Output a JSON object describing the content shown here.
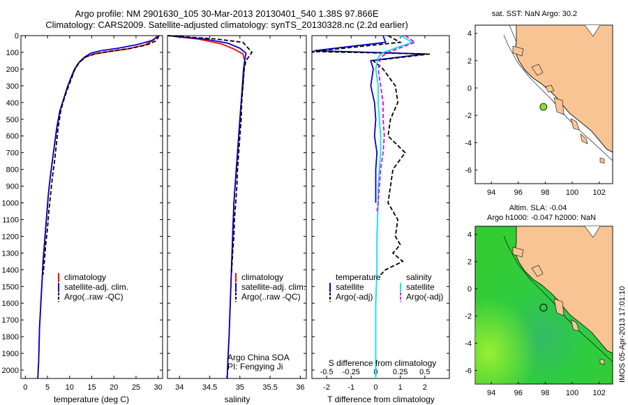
{
  "header": {
    "title_line1": "Argo profile: NM 2901630_105 30-Mar-2013 20130401_540 1.38S 97.866E",
    "title_line2": "Climatology: CARS2009. Satellite-adjusted climatology: synTS_20130328.nc (2.2d earlier)"
  },
  "colors": {
    "climatology": "#ff0000",
    "satellite": "#0000cc",
    "argo": "#000000",
    "sat_salinity": "#00e5ee",
    "argo_salinity_adj": "#e000e0",
    "land": "#f8c493",
    "ocean_map2": "#33cc33"
  },
  "depth_axis": {
    "ticks": [
      0,
      100,
      200,
      300,
      400,
      500,
      600,
      700,
      800,
      900,
      1000,
      1100,
      1200,
      1300,
      1400,
      1500,
      1600,
      1700,
      1800,
      1900,
      2000
    ],
    "range": [
      0,
      2050
    ]
  },
  "chart_data": [
    {
      "id": "temperature",
      "type": "line",
      "xlabel": "temperature (deg C)",
      "xlim": [
        -1,
        31
      ],
      "xticks": [
        0,
        5,
        10,
        15,
        20,
        25,
        30
      ],
      "legend": [
        "climatology",
        "satellite-adj. clim.",
        "Argo(..raw -QC)"
      ],
      "series": [
        {
          "name": "climatology",
          "color": "#ff0000",
          "dash": false,
          "x": [
            29.8,
            29.5,
            28.8,
            27,
            23,
            19,
            15.5,
            13.5,
            12.2,
            11.2,
            10.4,
            9.6,
            9,
            8.4,
            7.8,
            7.1,
            6.6,
            6.1,
            5.6,
            5.2,
            4.9,
            4.6,
            4.3,
            4.0,
            3.8,
            3.6,
            3.4,
            3.2,
            3.1,
            3.0,
            2.9,
            2.85,
            2.8,
            2.8
          ],
          "y": [
            0,
            10,
            30,
            55,
            80,
            95,
            110,
            130,
            160,
            200,
            250,
            300,
            350,
            400,
            450,
            550,
            650,
            750,
            850,
            950,
            1050,
            1150,
            1250,
            1350,
            1450,
            1550,
            1650,
            1750,
            1850,
            1950,
            2000,
            2030,
            2050,
            2050
          ]
        },
        {
          "name": "satellite-adj. clim.",
          "color": "#0000cc",
          "dash": false,
          "x": [
            30.2,
            29.8,
            28.5,
            25,
            21,
            17,
            14.8,
            13.3,
            12.1,
            11.1,
            10.3,
            9.6,
            9,
            8.4,
            7.8,
            7.1,
            6.6,
            6.1,
            5.6,
            5.2,
            4.9,
            4.6,
            4.3,
            4.0,
            3.8,
            3.6,
            3.4,
            3.2,
            3.1,
            3.0,
            2.9,
            2.85,
            2.8
          ],
          "y": [
            0,
            10,
            30,
            55,
            75,
            90,
            105,
            130,
            160,
            200,
            250,
            300,
            350,
            400,
            450,
            550,
            650,
            750,
            850,
            950,
            1050,
            1150,
            1250,
            1350,
            1450,
            1550,
            1650,
            1750,
            1850,
            1950,
            2000,
            2030,
            2050
          ]
        },
        {
          "name": "Argo(..raw -QC)",
          "color": "#000000",
          "dash": true,
          "x": [
            30.2,
            30.0,
            29.6,
            27.5,
            24,
            20,
            16.5,
            13.8,
            12.2,
            11.2,
            10.5,
            9.8,
            9.1,
            8.5,
            8.0,
            7.4,
            7.0,
            6.6,
            6.1,
            5.7,
            5.3,
            5.0,
            4.6,
            4.3,
            4.0
          ],
          "y": [
            0,
            10,
            30,
            55,
            75,
            90,
            105,
            125,
            160,
            200,
            250,
            300,
            350,
            400,
            450,
            550,
            650,
            750,
            850,
            950,
            1050,
            1150,
            1250,
            1350,
            1430
          ]
        }
      ]
    },
    {
      "id": "salinity",
      "type": "line",
      "xlabel": "salinity",
      "xlim": [
        33.8,
        36.1
      ],
      "xticks": [
        34,
        34.5,
        35,
        35.5,
        36
      ],
      "xticklabels": [
        "34",
        "34.5",
        "35",
        "35.5",
        "36"
      ],
      "legend": [
        "climatology",
        "satellite-adj. clim.",
        "Argo(..raw -QC)"
      ],
      "annotation": [
        "Argo China SOA",
        "PI: Fengying Ji"
      ],
      "series": [
        {
          "name": "climatology",
          "color": "#ff0000",
          "dash": false,
          "x": [
            33.8,
            34.3,
            34.7,
            34.9,
            35.05,
            35.08,
            35.07,
            35.05,
            35.02,
            35.0,
            34.98,
            34.96,
            34.94,
            34.92,
            34.9,
            34.88,
            34.86,
            34.84,
            34.82,
            34.8,
            34.79,
            34.78
          ],
          "y": [
            0,
            20,
            50,
            80,
            110,
            150,
            200,
            300,
            400,
            500,
            600,
            700,
            800,
            900,
            1000,
            1200,
            1400,
            1600,
            1800,
            1950,
            2030,
            2050
          ]
        },
        {
          "name": "satellite-adj. clim.",
          "color": "#0000cc",
          "dash": false,
          "x": [
            33.8,
            34.4,
            34.8,
            35.0,
            35.1,
            35.08,
            35.06,
            35.04,
            35.02,
            35.0,
            34.98,
            34.96,
            34.94,
            34.92,
            34.9,
            34.88,
            34.86,
            34.84,
            34.82,
            34.8,
            34.79
          ],
          "y": [
            0,
            20,
            45,
            75,
            105,
            150,
            200,
            300,
            400,
            500,
            600,
            700,
            800,
            900,
            1000,
            1200,
            1400,
            1600,
            1800,
            1950,
            2050
          ]
        },
        {
          "name": "Argo(..raw -QC)",
          "color": "#000000",
          "dash": true,
          "x": [
            33.8,
            34.6,
            35.05,
            35.2,
            35.1,
            35.07,
            35.05,
            35.03,
            35.02,
            35.0,
            34.98,
            34.96,
            34.95,
            34.93,
            34.91,
            34.9,
            34.88,
            34.86
          ],
          "y": [
            0,
            20,
            40,
            100,
            150,
            200,
            300,
            400,
            500,
            600,
            700,
            800,
            900,
            1000,
            1100,
            1200,
            1300,
            1430
          ]
        }
      ]
    },
    {
      "id": "difference",
      "type": "line",
      "xlabel": "T difference from climatology",
      "xlabel_top": "S difference from climatology",
      "xlim": [
        -2.6,
        3.0
      ],
      "xticks": [
        -2,
        -1,
        0,
        1,
        2
      ],
      "sticks": [
        -0.5,
        -0.25,
        0,
        0.25,
        0.5
      ],
      "sticklabels": [
        "-0.5",
        "-0.25",
        "0",
        "0.25",
        "0.5"
      ],
      "legend_headers": [
        "temperature",
        "salinity"
      ],
      "legend": [
        "satellite",
        "Argo(-adj)",
        "satellite",
        "Argo(-adj)"
      ],
      "series": [
        {
          "name": "satellite",
          "color": "#0000cc",
          "dash": false,
          "x": [
            0.3,
            0.4,
            -2.5,
            2.0,
            -0.2,
            -0.1,
            -0.2,
            -0.05,
            0,
            -0.05,
            0.05,
            0,
            0,
            0
          ],
          "y": [
            0,
            40,
            90,
            110,
            150,
            200,
            300,
            400,
            500,
            600,
            700,
            800,
            900,
            1000
          ]
        },
        {
          "name": "Argo(-adj)",
          "color": "#000000",
          "dash": true,
          "x": [
            0.5,
            1.0,
            -2.6,
            2.2,
            -0.1,
            0.3,
            0.8,
            0.9,
            0.6,
            0.5,
            1.2,
            0.7,
            0.6,
            0.5,
            0.9,
            0.8,
            1.0,
            0.7,
            1.1,
            0.4,
            0.2
          ],
          "y": [
            0,
            40,
            95,
            110,
            150,
            200,
            300,
            400,
            500,
            600,
            700,
            800,
            900,
            1000,
            1100,
            1200,
            1250,
            1300,
            1350,
            1400,
            1430
          ]
        },
        {
          "name": "satellite",
          "color": "#00e5ee",
          "dash": false,
          "x": [
            1.0,
            1.5,
            0.3,
            0.1,
            0,
            0.1,
            0.1,
            0.15,
            0.2,
            0.2,
            0.15,
            0.1,
            0.1,
            0.05,
            0.05,
            0,
            0,
            0
          ],
          "y": [
            0,
            40,
            100,
            130,
            200,
            300,
            400,
            500,
            600,
            700,
            800,
            900,
            1000,
            1200,
            1400,
            1600,
            1800,
            2050
          ]
        },
        {
          "name": "Argo(-adj)",
          "color": "#e000e0",
          "dash": true,
          "x": [
            1.2,
            1.6,
            0.5,
            0.2,
            0.1,
            0.2,
            0.3,
            0.3,
            0.35,
            0.3,
            0.2,
            0.15,
            0.1,
            0.05
          ],
          "y": [
            0,
            40,
            100,
            130,
            200,
            300,
            400,
            500,
            600,
            700,
            800,
            900,
            1000,
            1050
          ]
        }
      ]
    }
  ],
  "map1": {
    "title": "sat. SST: NaN Argo: 30.2",
    "xticks": [
      94,
      96,
      98,
      100,
      102
    ],
    "yticks": [
      4,
      2,
      0,
      -2,
      -4,
      -6
    ],
    "xlim": [
      92.8,
      103.0
    ],
    "ylim": [
      -7.0,
      4.6
    ],
    "float_lon": 97.866,
    "float_lat": -1.38,
    "marker_color": "#88dd33"
  },
  "map2": {
    "title_line1": "Altim. SLA: -0.04",
    "title_line2": "Argo h1000: -0.047 h2000: NaN",
    "xticks": [
      94,
      96,
      98,
      100,
      102
    ],
    "yticks": [
      4,
      2,
      0,
      -2,
      -4,
      -6
    ],
    "float_lon": 97.866,
    "float_lat": -1.38,
    "watermark": "IMOS 05-Apr-2013 17:01:10"
  }
}
